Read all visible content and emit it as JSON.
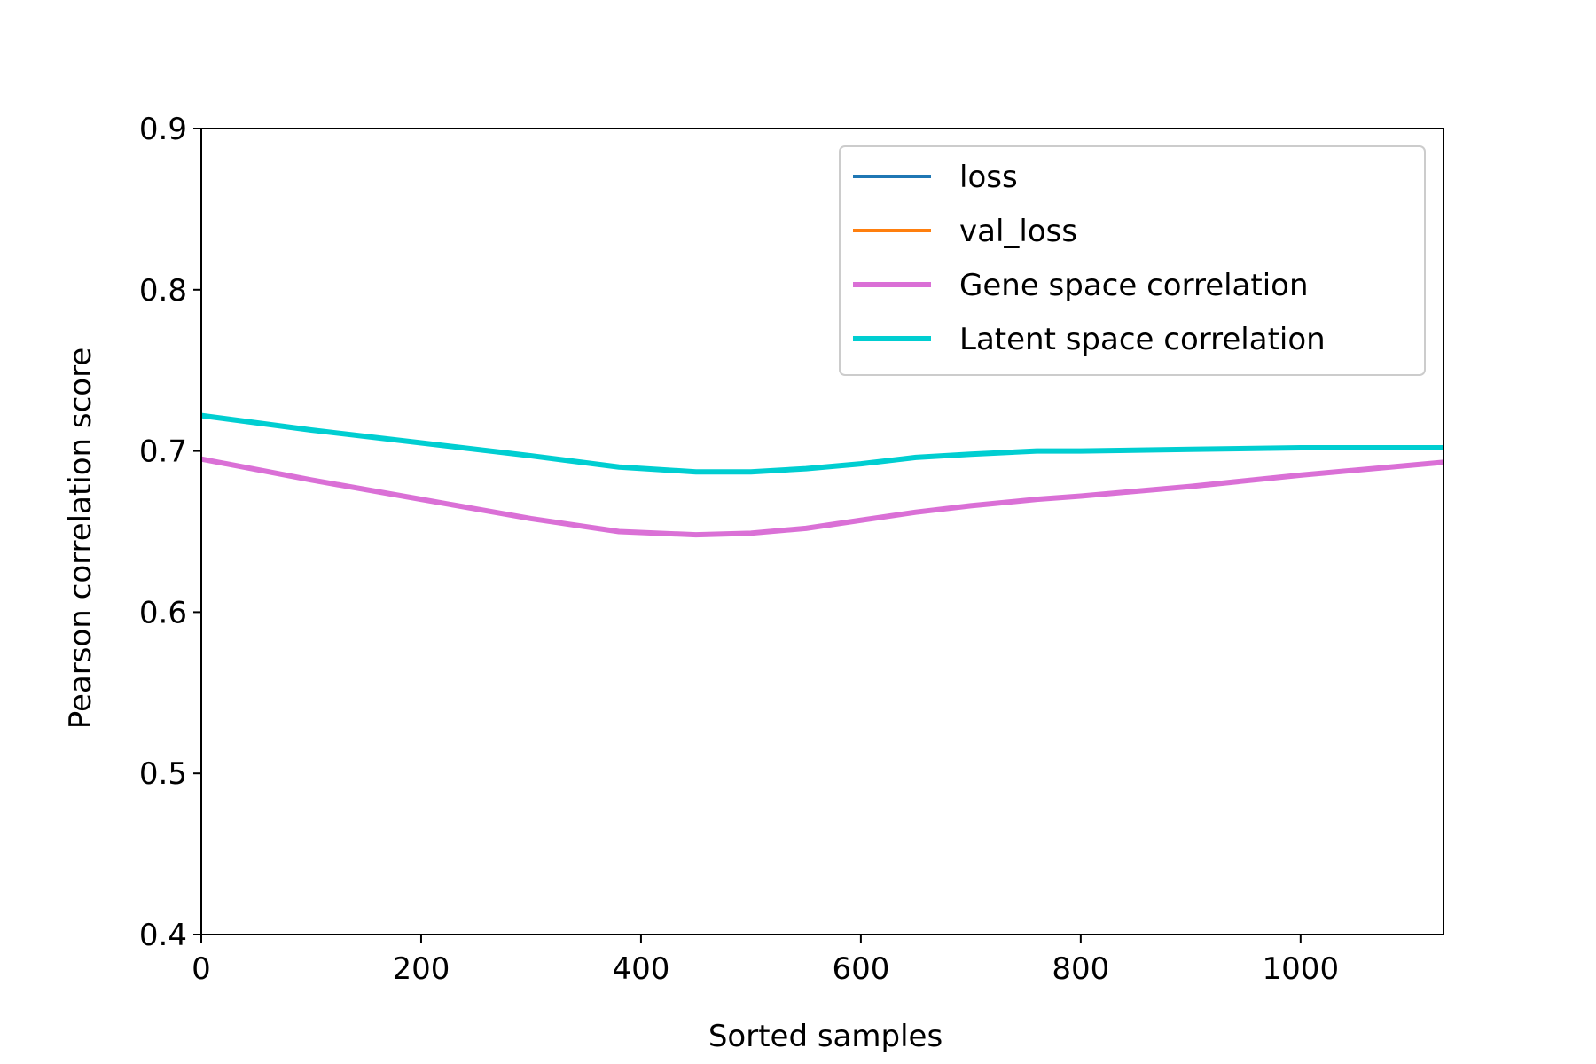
{
  "chart_data": {
    "type": "line",
    "title": "",
    "xlabel": "Sorted samples",
    "ylabel": "Pearson correlation score",
    "xlim": [
      0,
      1130
    ],
    "ylim": [
      0.4,
      0.9
    ],
    "xticks": [
      0,
      200,
      400,
      600,
      800,
      1000
    ],
    "xtick_labels": [
      "0",
      "200",
      "400",
      "600",
      "800",
      "1000"
    ],
    "yticks": [
      0.4,
      0.5,
      0.6,
      0.7,
      0.8,
      0.9
    ],
    "ytick_labels": [
      "0.4",
      "0.5",
      "0.6",
      "0.7",
      "0.8",
      "0.9"
    ],
    "grid": false,
    "legend_position": "top-right",
    "series": [
      {
        "name": "loss",
        "color": "#1f77b4",
        "x": [],
        "y": []
      },
      {
        "name": "val_loss",
        "color": "#ff7f0e",
        "x": [],
        "y": []
      },
      {
        "name": "Gene space correlation",
        "color": "#da70d6",
        "x": [
          0,
          100,
          200,
          300,
          380,
          450,
          500,
          550,
          600,
          650,
          700,
          760,
          800,
          900,
          1000,
          1130
        ],
        "y": [
          0.695,
          0.682,
          0.67,
          0.658,
          0.65,
          0.648,
          0.649,
          0.652,
          0.657,
          0.662,
          0.666,
          0.67,
          0.672,
          0.678,
          0.685,
          0.693
        ]
      },
      {
        "name": "Latent space correlation",
        "color": "#00ced1",
        "x": [
          0,
          100,
          200,
          300,
          380,
          450,
          500,
          550,
          600,
          650,
          700,
          760,
          800,
          900,
          1000,
          1130
        ],
        "y": [
          0.722,
          0.713,
          0.705,
          0.697,
          0.69,
          0.687,
          0.687,
          0.689,
          0.692,
          0.696,
          0.698,
          0.7,
          0.7,
          0.701,
          0.702,
          0.702
        ]
      }
    ]
  }
}
